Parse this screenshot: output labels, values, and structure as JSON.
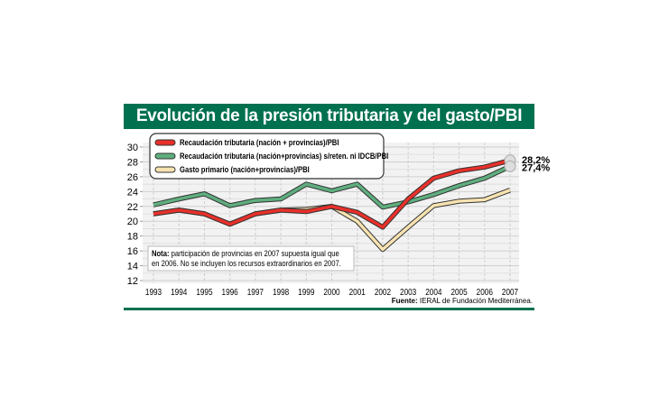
{
  "chart_data": {
    "type": "line",
    "title": "Evolución de la presión tributaria y del gasto/PBI",
    "x": [
      1993,
      1994,
      1995,
      1996,
      1997,
      1998,
      1999,
      2000,
      2001,
      2002,
      2003,
      2004,
      2005,
      2006,
      2007
    ],
    "yticks": [
      12,
      14,
      16,
      18,
      20,
      22,
      24,
      26,
      28,
      30
    ],
    "ylim": [
      12,
      30
    ],
    "grid": true,
    "legend_position": "top-left",
    "series": [
      {
        "name": "Recaudación tributaria (nación + provincias)/PBI",
        "color": "#e8302a",
        "values": [
          21.0,
          21.5,
          21.0,
          19.6,
          21.0,
          21.5,
          21.3,
          22.0,
          21.2,
          19.2,
          23.0,
          25.8,
          26.8,
          27.3,
          28.2
        ],
        "end_label": "28,2%"
      },
      {
        "name": "Recaudación tributaria (nación+provincias) s/reten. ni IDCB/PBI",
        "color": "#5fae7e",
        "values": [
          22.2,
          23.0,
          23.7,
          22.1,
          22.8,
          23.0,
          25.0,
          24.1,
          25.0,
          21.9,
          22.6,
          23.6,
          24.8,
          25.8,
          27.4
        ],
        "end_label": "27,4%"
      },
      {
        "name": "Gasto primario (nación+provincias)/PBI",
        "color": "#f7e3b0",
        "values": [
          21.0,
          21.5,
          21.0,
          19.6,
          21.0,
          21.5,
          21.6,
          22.0,
          20.0,
          16.2,
          19.2,
          22.1,
          22.7,
          22.9,
          24.2
        ]
      }
    ],
    "note_label": "Nota:",
    "note_line1": " participación de provincias en 2007 supuesta igual que",
    "note_line2": "en 2006. No se incluyen los recursos extraordinarios en 2007.",
    "source_label": "Fuente:",
    "source_text": " IERAL de Fundación Mediterránea."
  }
}
